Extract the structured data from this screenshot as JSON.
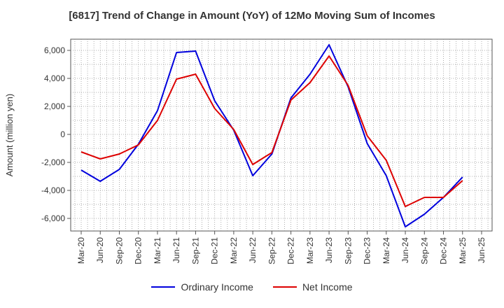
{
  "chart_data": {
    "type": "line",
    "title": "[6817]  Trend of Change in Amount (YoY) of 12Mo Moving Sum of Incomes",
    "ylabel": "Amount (million yen)",
    "ylim": [
      -6900,
      6800
    ],
    "yticks": [
      6000,
      4000,
      2000,
      0,
      -2000,
      -4000,
      -6000
    ],
    "ytick_labels": [
      "6,000",
      "4,000",
      "2,000",
      "0",
      "-2,000",
      "-4,000",
      "-6,000"
    ],
    "x": [
      "Mar-20",
      "Jun-20",
      "Sep-20",
      "Dec-20",
      "Mar-21",
      "Jun-21",
      "Sep-21",
      "Dec-21",
      "Mar-22",
      "Jun-22",
      "Sep-22",
      "Dec-22",
      "Mar-23",
      "Jun-23",
      "Sep-23",
      "Dec-23",
      "Mar-24",
      "Jun-24",
      "Sep-24",
      "Dec-24",
      "Mar-25",
      "Jun-25"
    ],
    "grid": true,
    "legend_position": "bottom",
    "series": [
      {
        "name": "Ordinary Income",
        "color": "#0000dd",
        "values": [
          -2550,
          -3350,
          -2500,
          -700,
          1700,
          5850,
          5950,
          2400,
          300,
          -2950,
          -1400,
          2600,
          4300,
          6400,
          3400,
          -650,
          -2950,
          -6600,
          -5700,
          -4500,
          -3050,
          null
        ]
      },
      {
        "name": "Net Income",
        "color": "#dd0000",
        "values": [
          -1250,
          -1750,
          -1400,
          -750,
          1000,
          3950,
          4300,
          1850,
          350,
          -2150,
          -1300,
          2450,
          3700,
          5600,
          3500,
          -100,
          -1850,
          -5150,
          -4500,
          -4500,
          -3300,
          null
        ]
      }
    ]
  }
}
